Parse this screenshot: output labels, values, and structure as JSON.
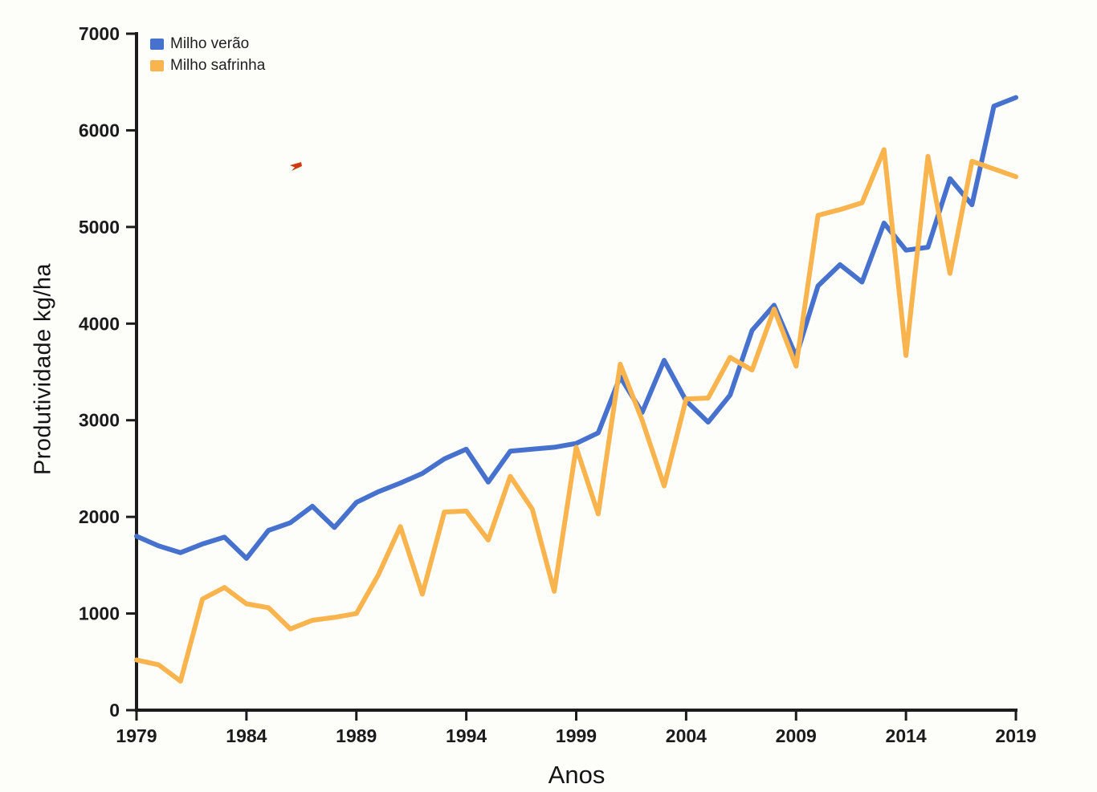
{
  "figure": {
    "background": "#fdfdfa"
  },
  "artifacts": {
    "red_pen_mark_color": "#cf3a0d"
  },
  "chart_data": {
    "type": "line",
    "title": "",
    "xlabel": "Anos",
    "ylabel": "Produtividade kg/ha",
    "xlim": [
      1979,
      2019
    ],
    "ylim": [
      0,
      7000
    ],
    "grid": false,
    "legend_position": "top-left-inside",
    "axis_color": "#1c1c1c",
    "x_ticks": [
      "1979",
      "1984",
      "1989",
      "1994",
      "1999",
      "2004",
      "2009",
      "2014",
      "2019"
    ],
    "y_ticks": [
      "0",
      "1000",
      "2000",
      "3000",
      "4000",
      "5000",
      "6000",
      "7000"
    ],
    "x": [
      1979,
      1980,
      1981,
      1982,
      1983,
      1984,
      1985,
      1986,
      1987,
      1988,
      1989,
      1990,
      1991,
      1992,
      1993,
      1994,
      1995,
      1996,
      1997,
      1998,
      1999,
      2000,
      2001,
      2002,
      2003,
      2004,
      2005,
      2006,
      2007,
      2008,
      2009,
      2010,
      2011,
      2012,
      2013,
      2014,
      2015,
      2016,
      2017,
      2018,
      2019
    ],
    "series": [
      {
        "name": "Milho verão",
        "color": "#4671cd",
        "values": [
          1800,
          1700,
          1630,
          1720,
          1790,
          1570,
          1860,
          1940,
          2110,
          1890,
          2150,
          2260,
          2350,
          2450,
          2600,
          2700,
          2360,
          2680,
          2700,
          2720,
          2760,
          2870,
          3450,
          3080,
          3620,
          3200,
          2980,
          3260,
          3930,
          4190,
          3660,
          4390,
          4610,
          4430,
          5040,
          4760,
          4790,
          5500,
          5230,
          6250,
          6340
        ]
      },
      {
        "name": "Milho safrinha",
        "color": "#f9b44e",
        "values": [
          520,
          470,
          300,
          1150,
          1270,
          1100,
          1060,
          840,
          930,
          960,
          1000,
          1400,
          1900,
          1200,
          2050,
          2060,
          1760,
          2420,
          2080,
          1230,
          2720,
          2030,
          3580,
          3000,
          2320,
          3220,
          3230,
          3650,
          3520,
          4150,
          3560,
          5120,
          5180,
          5250,
          5800,
          3670,
          5730,
          4520,
          5680,
          5600,
          5520
        ]
      }
    ]
  }
}
